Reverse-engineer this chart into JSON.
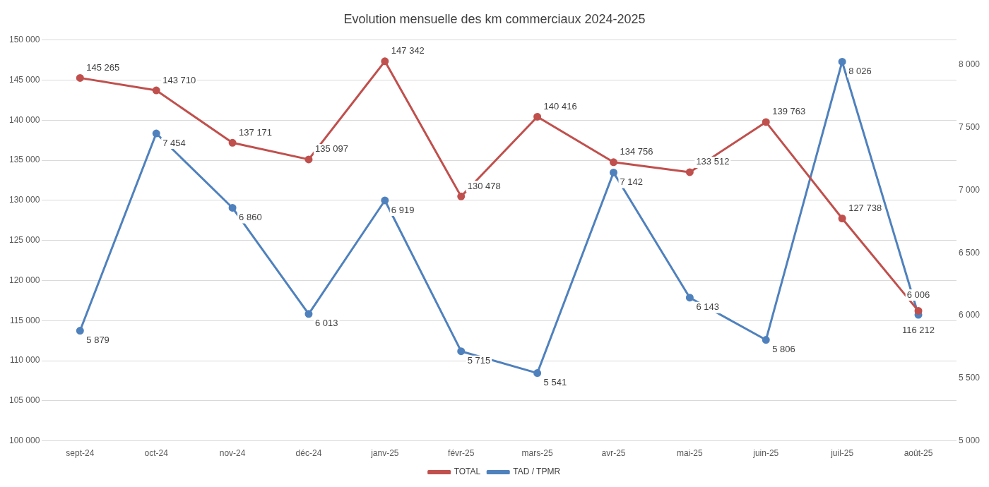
{
  "chart_data": {
    "type": "line",
    "title": "Evolution mensuelle des km commerciaux 2024-2025",
    "categories": [
      "sept-24",
      "oct-24",
      "nov-24",
      "déc-24",
      "janv-25",
      "févr-25",
      "mars-25",
      "avr-25",
      "mai-25",
      "juin-25",
      "juil-25",
      "août-25"
    ],
    "series": [
      {
        "name": "TOTAL",
        "color": "#c0504d",
        "values": [
          145265,
          143710,
          137171,
          135097,
          147342,
          130478,
          140416,
          134756,
          133512,
          139763,
          127738,
          116212
        ],
        "value_labels": [
          "145 265",
          "143 710",
          "137 171",
          "135 097",
          "147 342",
          "130 478",
          "140 416",
          "134 756",
          "133 512",
          "139 763",
          "127 738",
          "116 212"
        ]
      },
      {
        "name": "TAD / TPMR",
        "color": "#4f81bd",
        "axis": "y2",
        "values": [
          5879,
          7454,
          6860,
          6013,
          6919,
          5715,
          5541,
          7142,
          6143,
          5806,
          8026,
          6006
        ],
        "value_labels": [
          "5 879",
          "7 454",
          "6 860",
          "6 013",
          "6 919",
          "5 715",
          "5 541",
          "7 142",
          "6 143",
          "5 806",
          "8 026",
          "6 006"
        ]
      }
    ],
    "ylim": [
      100000,
      150000
    ],
    "yticks": [
      {
        "value": 100000,
        "label": "100 000"
      },
      {
        "value": 105000,
        "label": "105 000"
      },
      {
        "value": 110000,
        "label": "110 000"
      },
      {
        "value": 115000,
        "label": "115 000"
      },
      {
        "value": 120000,
        "label": "120 000"
      },
      {
        "value": 125000,
        "label": "125 000"
      },
      {
        "value": 130000,
        "label": "130 000"
      },
      {
        "value": 135000,
        "label": "135 000"
      },
      {
        "value": 140000,
        "label": "140 000"
      },
      {
        "value": 145000,
        "label": "145 000"
      },
      {
        "value": 150000,
        "label": "150 000"
      }
    ],
    "y2lim": [
      5000,
      8200
    ],
    "y2ticks": [
      {
        "value": 5000,
        "label": "5 000"
      },
      {
        "value": 5500,
        "label": "5 500"
      },
      {
        "value": 6000,
        "label": "6 000"
      },
      {
        "value": 6500,
        "label": "6 500"
      },
      {
        "value": 7000,
        "label": "7 000"
      },
      {
        "value": 7500,
        "label": "7 500"
      },
      {
        "value": 8000,
        "label": "8 000"
      }
    ],
    "grid": "y",
    "legend": "bottom",
    "marker": "circle",
    "line_style": "solid"
  }
}
